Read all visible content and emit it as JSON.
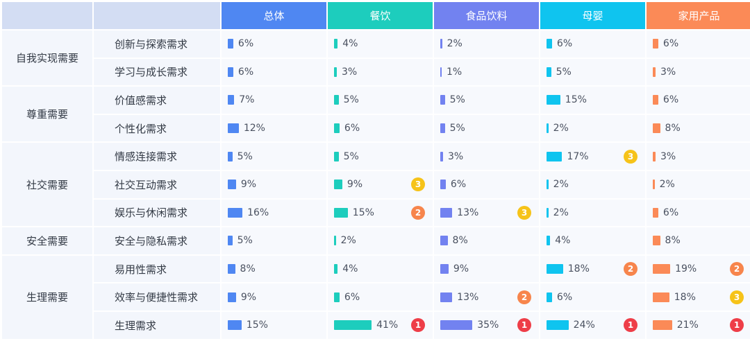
{
  "columns": [
    {
      "label": "总体",
      "color": "#4f87f2"
    },
    {
      "label": "餐饮",
      "color": "#1dcdbd"
    },
    {
      "label": "食品饮料",
      "color": "#7282f0"
    },
    {
      "label": "母婴",
      "color": "#0fc4ef"
    },
    {
      "label": "家用产品",
      "color": "#fb8a57"
    }
  ],
  "header_colors": {
    "corner": "#d3ddf3"
  },
  "rank_colors": {
    "1": "#ee3e48",
    "2": "#f7854c",
    "3": "#f6c319"
  },
  "groups": [
    {
      "label": "自我实现需要",
      "span": 2
    },
    {
      "label": "尊重需要",
      "span": 2
    },
    {
      "label": "社交需要",
      "span": 3
    },
    {
      "label": "安全需要",
      "span": 1
    },
    {
      "label": "生理需要",
      "span": 3
    }
  ],
  "chart_data": {
    "type": "table",
    "rows": [
      {
        "label": "创新与探索需求",
        "values": [
          6,
          4,
          2,
          6,
          6
        ],
        "ranks": [
          null,
          null,
          null,
          null,
          null
        ]
      },
      {
        "label": "学习与成长需求",
        "values": [
          6,
          3,
          1,
          5,
          3
        ],
        "ranks": [
          null,
          null,
          null,
          null,
          null
        ]
      },
      {
        "label": "价值感需求",
        "values": [
          7,
          5,
          5,
          15,
          6
        ],
        "ranks": [
          null,
          null,
          null,
          null,
          null
        ]
      },
      {
        "label": "个性化需求",
        "values": [
          12,
          6,
          5,
          2,
          8
        ],
        "ranks": [
          null,
          null,
          null,
          null,
          null
        ]
      },
      {
        "label": "情感连接需求",
        "values": [
          5,
          5,
          3,
          17,
          3
        ],
        "ranks": [
          null,
          null,
          null,
          3,
          null
        ]
      },
      {
        "label": "社交互动需求",
        "values": [
          9,
          9,
          6,
          2,
          2
        ],
        "ranks": [
          null,
          3,
          null,
          null,
          null
        ]
      },
      {
        "label": "娱乐与休闲需求",
        "values": [
          16,
          15,
          13,
          2,
          6
        ],
        "ranks": [
          null,
          2,
          3,
          null,
          null
        ]
      },
      {
        "label": "安全与隐私需求",
        "values": [
          5,
          2,
          8,
          4,
          8
        ],
        "ranks": [
          null,
          null,
          null,
          null,
          null
        ]
      },
      {
        "label": "易用性需求",
        "values": [
          8,
          4,
          9,
          18,
          19
        ],
        "ranks": [
          null,
          null,
          null,
          2,
          2
        ]
      },
      {
        "label": "效率与便捷性需求",
        "values": [
          9,
          6,
          13,
          6,
          18
        ],
        "ranks": [
          null,
          null,
          2,
          null,
          3
        ]
      },
      {
        "label": "生理需求",
        "values": [
          15,
          41,
          35,
          24,
          21
        ],
        "ranks": [
          null,
          1,
          1,
          1,
          1
        ]
      }
    ],
    "unit": "%"
  }
}
